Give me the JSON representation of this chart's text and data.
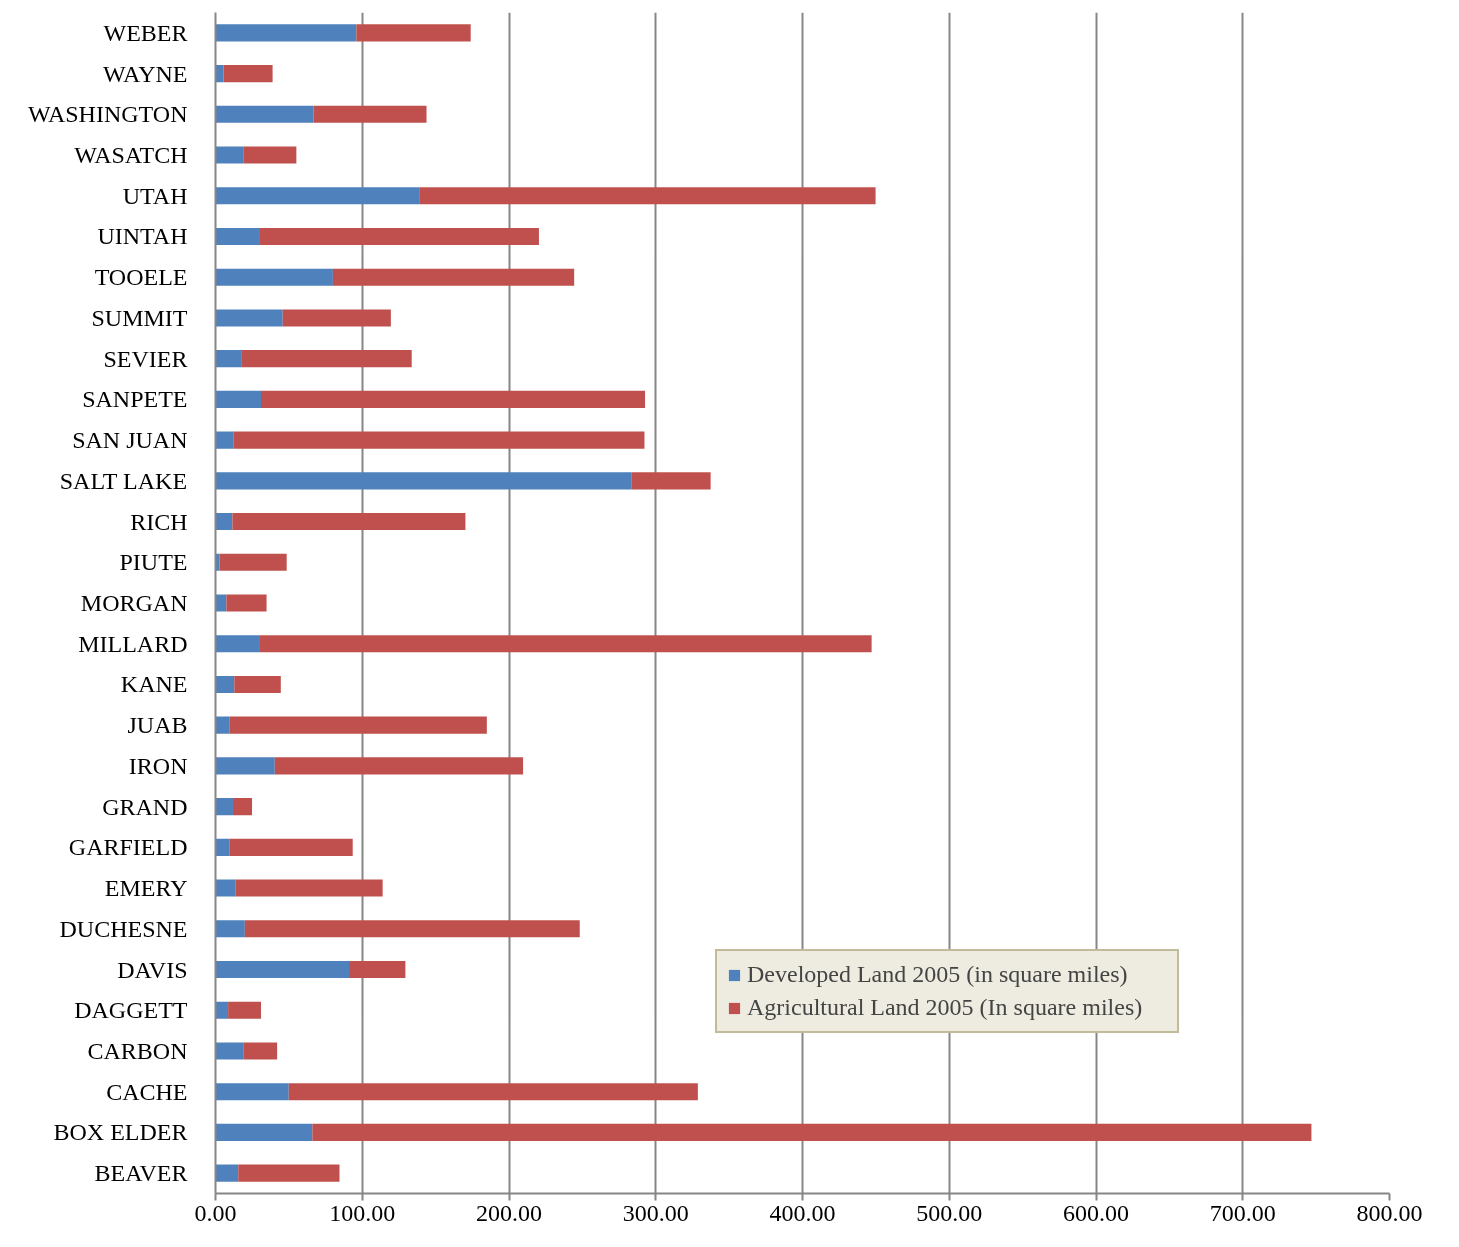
{
  "chart_data": {
    "type": "bar",
    "orientation": "horizontal",
    "stacked": true,
    "categories": [
      "WEBER",
      "WAYNE",
      "WASHINGTON",
      "WASATCH",
      "UTAH",
      "UINTAH",
      "TOOELE",
      "SUMMIT",
      "SEVIER",
      "SANPETE",
      "SAN JUAN",
      "SALT LAKE",
      "RICH",
      "PIUTE",
      "MORGAN",
      "MILLARD",
      "KANE",
      "JUAB",
      "IRON",
      "GRAND",
      "GARFIELD",
      "EMERY",
      "DUCHESNE",
      "DAVIS",
      "DAGGETT",
      "CARBON",
      "CACHE",
      "BOX ELDER",
      "BEAVER"
    ],
    "series": [
      {
        "name": "Developed Land 2005 (in square miles)",
        "color": "#4f81bd",
        "values": [
          96.0,
          5.4,
          66.7,
          18.9,
          138.8,
          29.7,
          80.0,
          45.8,
          17.5,
          31.0,
          12.1,
          283.3,
          11.5,
          2.7,
          7.4,
          30.3,
          12.8,
          9.4,
          40.4,
          11.9,
          9.7,
          13.5,
          20.0,
          91.0,
          8.6,
          18.9,
          49.9,
          66.0,
          15.5
        ]
      },
      {
        "name": "Agricultural Land 2005 (In square miles)",
        "color": "#c0504d",
        "values": [
          77.9,
          33.5,
          77.1,
          36.2,
          311.0,
          190.7,
          164.4,
          73.7,
          116.2,
          261.7,
          280.2,
          54.1,
          158.8,
          45.8,
          27.4,
          416.8,
          31.7,
          175.5,
          169.2,
          13.0,
          83.8,
          100.4,
          228.2,
          38.4,
          22.4,
          23.1,
          278.8,
          680.8,
          69.0
        ]
      }
    ],
    "xlim": [
      0,
      800
    ],
    "xticks": [
      {
        "value": 0,
        "label": "0.00"
      },
      {
        "value": 100,
        "label": "100.00"
      },
      {
        "value": 200,
        "label": "200.00"
      },
      {
        "value": 300,
        "label": "300.00"
      },
      {
        "value": 400,
        "label": "400.00"
      },
      {
        "value": 500,
        "label": "500.00"
      },
      {
        "value": 600,
        "label": "600.00"
      },
      {
        "value": 700,
        "label": "700.00"
      },
      {
        "value": 800,
        "label": "800.00"
      }
    ],
    "grid": "x",
    "legend": "bottom right"
  }
}
